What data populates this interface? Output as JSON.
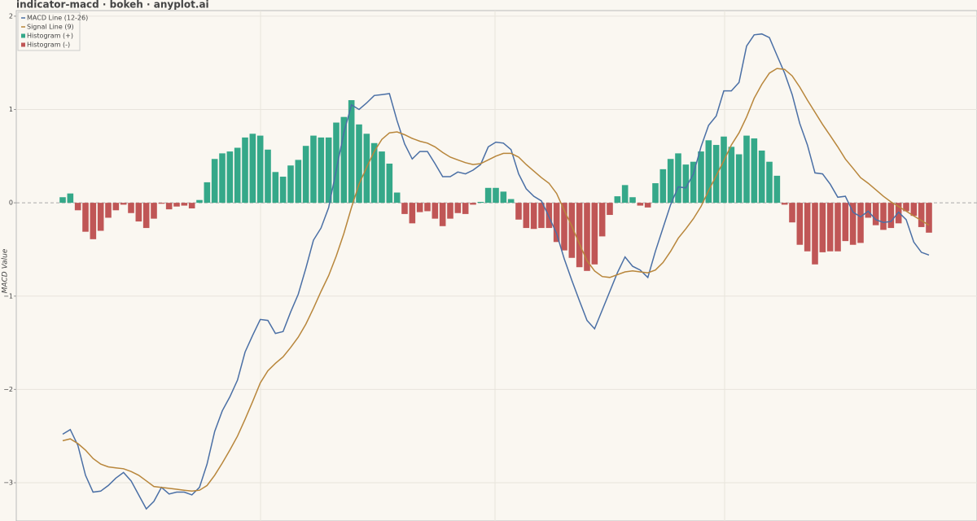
{
  "chart_data": {
    "type": "macd",
    "title": "indicator-macd · bokeh · anyplot.ai",
    "y_label": "MACD Value",
    "ylim": [
      -3.41,
      2.06
    ],
    "yticks": [
      2,
      1,
      0,
      {
        "value": -1,
        "label": "−1"
      },
      {
        "value": -2,
        "label": "−2"
      },
      {
        "value": -3,
        "label": "−3"
      }
    ],
    "grid": true,
    "legend": "top-left",
    "series": [
      {
        "name": "MACD Line (12-26)",
        "color": "#4a6fa5",
        "values": [
          -2.48,
          -2.43,
          -2.6,
          -2.92,
          -3.1,
          -3.09,
          -3.03,
          -2.95,
          -2.89,
          -2.98,
          -3.13,
          -3.28,
          -3.2,
          -3.05,
          -3.12,
          -3.1,
          -3.1,
          -3.13,
          -3.05,
          -2.8,
          -2.45,
          -2.23,
          -2.08,
          -1.9,
          -1.6,
          -1.42,
          -1.25,
          -1.26,
          -1.4,
          -1.38,
          -1.17,
          -0.98,
          -0.7,
          -0.4,
          -0.27,
          -0.05,
          0.35,
          0.75,
          1.05,
          1.0,
          1.07,
          1.15,
          1.16,
          1.17,
          0.88,
          0.63,
          0.47,
          0.55,
          0.55,
          0.42,
          0.28,
          0.28,
          0.33,
          0.31,
          0.35,
          0.41,
          0.6,
          0.65,
          0.64,
          0.57,
          0.31,
          0.15,
          0.07,
          0.02,
          -0.15,
          -0.33,
          -0.6,
          -0.83,
          -1.05,
          -1.26,
          -1.35,
          -1.15,
          -0.95,
          -0.75,
          -0.58,
          -0.68,
          -0.72,
          -0.8,
          -0.52,
          -0.27,
          -0.02,
          0.17,
          0.16,
          0.31,
          0.6,
          0.83,
          0.93,
          1.2,
          1.2,
          1.29,
          1.68,
          1.8,
          1.81,
          1.77,
          1.58,
          1.39,
          1.16,
          0.85,
          0.62,
          0.32,
          0.31,
          0.2,
          0.06,
          0.07,
          -0.1,
          -0.15,
          -0.09,
          -0.18,
          -0.21,
          -0.2,
          -0.1,
          -0.18,
          -0.42,
          -0.53,
          -0.56
        ]
      },
      {
        "name": "Signal Line (9)",
        "color": "#b8863b",
        "values": [
          -2.55,
          -2.53,
          -2.58,
          -2.65,
          -2.74,
          -2.8,
          -2.83,
          -2.84,
          -2.85,
          -2.88,
          -2.92,
          -2.98,
          -3.04,
          -3.05,
          -3.06,
          -3.07,
          -3.08,
          -3.09,
          -3.08,
          -3.03,
          -2.92,
          -2.79,
          -2.65,
          -2.5,
          -2.32,
          -2.13,
          -1.93,
          -1.8,
          -1.72,
          -1.65,
          -1.55,
          -1.44,
          -1.3,
          -1.13,
          -0.95,
          -0.78,
          -0.57,
          -0.33,
          -0.05,
          0.2,
          0.38,
          0.55,
          0.68,
          0.75,
          0.76,
          0.73,
          0.69,
          0.66,
          0.64,
          0.6,
          0.54,
          0.49,
          0.46,
          0.43,
          0.41,
          0.42,
          0.46,
          0.5,
          0.53,
          0.53,
          0.49,
          0.41,
          0.34,
          0.27,
          0.21,
          0.1,
          -0.08,
          -0.25,
          -0.44,
          -0.62,
          -0.73,
          -0.79,
          -0.8,
          -0.77,
          -0.74,
          -0.73,
          -0.74,
          -0.75,
          -0.72,
          -0.64,
          -0.52,
          -0.38,
          -0.28,
          -0.17,
          -0.04,
          0.13,
          0.29,
          0.45,
          0.62,
          0.75,
          0.92,
          1.12,
          1.27,
          1.39,
          1.44,
          1.43,
          1.36,
          1.24,
          1.1,
          0.97,
          0.84,
          0.72,
          0.6,
          0.47,
          0.37,
          0.27,
          0.21,
          0.14,
          0.07,
          0.01,
          -0.04,
          -0.09,
          -0.14,
          -0.19,
          -0.24
        ]
      }
    ],
    "histogram": {
      "positive": {
        "name": "Histogram (+)",
        "color": "#35a889"
      },
      "negative": {
        "name": "Histogram (-)",
        "color": "#c05656"
      },
      "values": [
        0.06,
        0.1,
        -0.08,
        -0.31,
        -0.39,
        -0.3,
        -0.16,
        -0.08,
        -0.02,
        -0.11,
        -0.2,
        -0.27,
        -0.17,
        -0.01,
        -0.07,
        -0.04,
        -0.03,
        -0.06,
        0.03,
        0.22,
        0.47,
        0.53,
        0.55,
        0.59,
        0.7,
        0.74,
        0.72,
        0.57,
        0.33,
        0.28,
        0.4,
        0.46,
        0.61,
        0.72,
        0.7,
        0.7,
        0.86,
        0.92,
        1.1,
        0.84,
        0.74,
        0.64,
        0.55,
        0.42,
        0.11,
        -0.12,
        -0.22,
        -0.1,
        -0.09,
        -0.17,
        -0.25,
        -0.17,
        -0.11,
        -0.12,
        -0.02,
        0.01,
        0.16,
        0.16,
        0.12,
        0.04,
        -0.18,
        -0.27,
        -0.28,
        -0.27,
        -0.27,
        -0.42,
        -0.51,
        -0.59,
        -0.69,
        -0.73,
        -0.66,
        -0.36,
        -0.13,
        0.07,
        0.19,
        0.06,
        -0.03,
        -0.05,
        0.21,
        0.36,
        0.47,
        0.53,
        0.41,
        0.44,
        0.55,
        0.67,
        0.62,
        0.71,
        0.6,
        0.52,
        0.72,
        0.69,
        0.56,
        0.44,
        0.29,
        -0.02,
        -0.21,
        -0.45,
        -0.52,
        -0.66,
        -0.53,
        -0.52,
        -0.52,
        -0.41,
        -0.45,
        -0.43,
        -0.16,
        -0.24,
        -0.29,
        -0.27,
        -0.22,
        -0.09,
        -0.14,
        -0.26,
        -0.32
      ]
    }
  }
}
